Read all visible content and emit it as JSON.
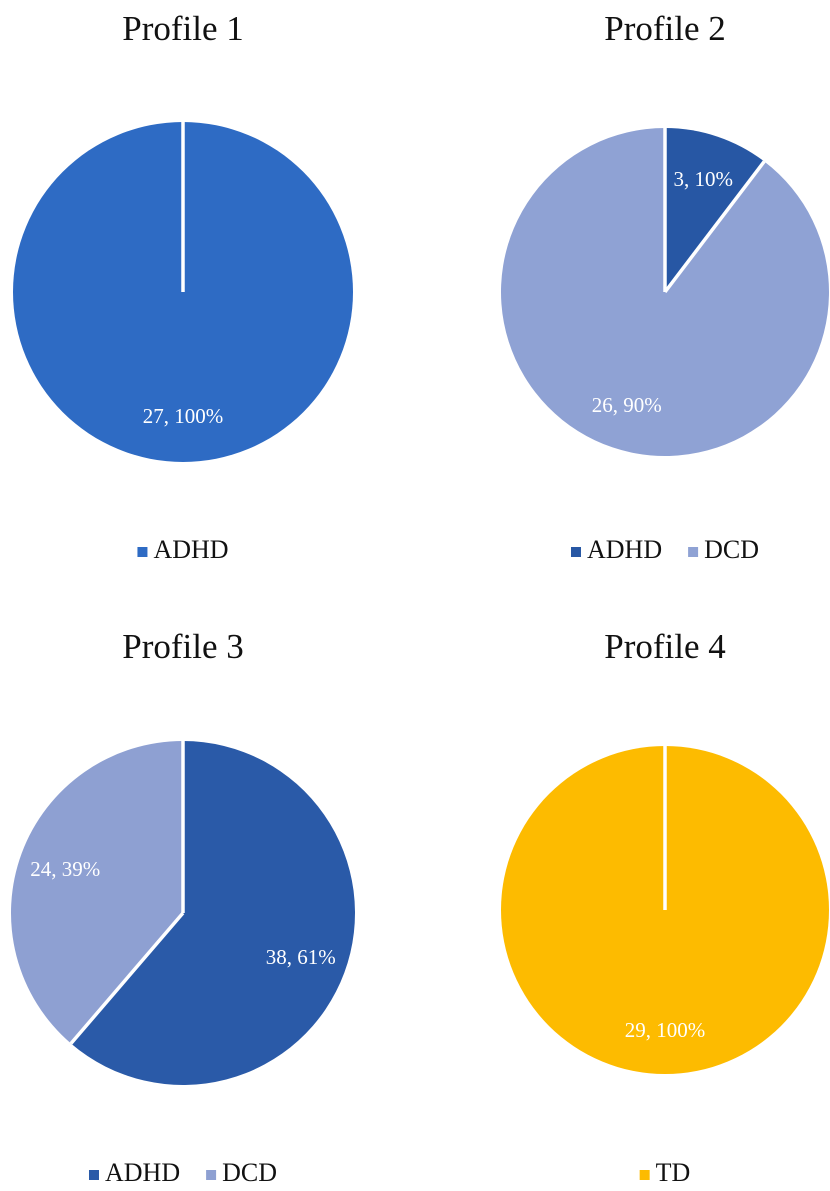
{
  "chart_data": [
    {
      "type": "pie",
      "title": "Profile 1",
      "categories": [
        "ADHD"
      ],
      "values": [
        27
      ],
      "value_labels": [
        "27, 100%"
      ],
      "colors": [
        "#2e6bc4"
      ]
    },
    {
      "type": "pie",
      "title": "Profile 2",
      "categories": [
        "ADHD",
        "DCD"
      ],
      "values": [
        3,
        26
      ],
      "value_labels": [
        "3, 10%",
        "26, 90%"
      ],
      "colors": [
        "#2757a4",
        "#8fa2d4"
      ]
    },
    {
      "type": "pie",
      "title": "Profile 3",
      "categories": [
        "ADHD",
        "DCD"
      ],
      "values": [
        38,
        24
      ],
      "value_labels": [
        "38, 61%",
        "24, 39%"
      ],
      "colors": [
        "#2a5aa8",
        "#8ea0d2"
      ]
    },
    {
      "type": "pie",
      "title": "Profile 4",
      "categories": [
        "TD"
      ],
      "values": [
        29
      ],
      "value_labels": [
        "29, 100%"
      ],
      "colors": [
        "#fdbb00"
      ]
    }
  ]
}
